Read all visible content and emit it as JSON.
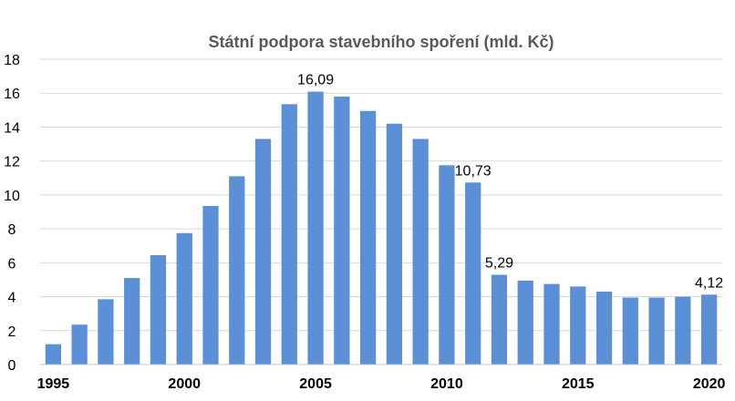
{
  "chart_data": {
    "type": "bar",
    "title": "Státní podpora stavebního spoření  (mld. Kč)",
    "xlabel": "",
    "ylabel": "",
    "ylim": [
      0,
      18
    ],
    "y_ticks": [
      "0",
      "2",
      "4",
      "6",
      "8",
      "10",
      "12",
      "14",
      "16",
      "18"
    ],
    "x_tick_labels": [
      "1995",
      "2000",
      "2005",
      "2010",
      "2015",
      "2020"
    ],
    "grid": true,
    "legend": "none",
    "bar_color": "#5b8fd6",
    "categories": [
      1995,
      1996,
      1997,
      1998,
      1999,
      2000,
      2001,
      2002,
      2003,
      2004,
      2005,
      2006,
      2007,
      2008,
      2009,
      2010,
      2011,
      2012,
      2013,
      2014,
      2015,
      2016,
      2017,
      2018,
      2019,
      2020
    ],
    "values": [
      1.2,
      2.35,
      3.85,
      5.1,
      6.45,
      7.75,
      9.35,
      11.1,
      13.3,
      15.35,
      16.09,
      15.8,
      14.95,
      14.2,
      13.3,
      11.75,
      10.73,
      5.29,
      4.95,
      4.75,
      4.6,
      4.3,
      3.95,
      3.95,
      4.0,
      4.12
    ],
    "data_labels": [
      {
        "category": 2005,
        "text": "16,09"
      },
      {
        "category": 2011,
        "text": "10,73"
      },
      {
        "category": 2012,
        "text": "5,29"
      },
      {
        "category": 2020,
        "text": "4,12"
      }
    ]
  }
}
